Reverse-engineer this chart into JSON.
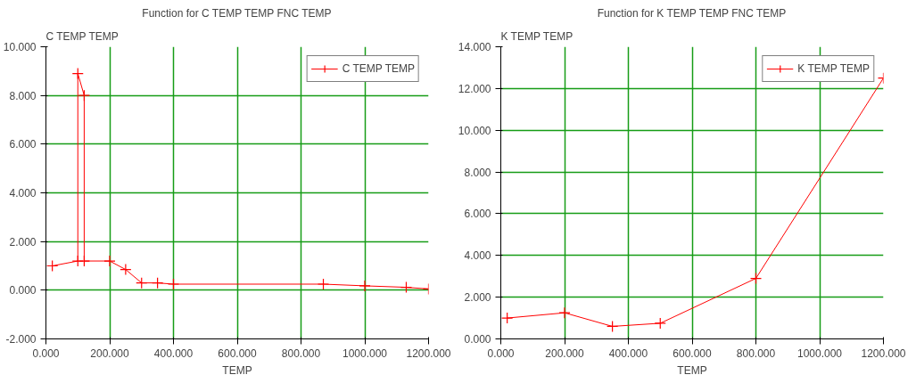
{
  "chart_data": [
    {
      "type": "line",
      "title": "Function for C TEMP TEMP FNC TEMP",
      "xlabel": "TEMP",
      "ylabel": "C TEMP TEMP",
      "x": [
        20,
        100,
        100,
        120,
        120,
        200,
        250,
        300,
        350,
        400,
        870,
        1000,
        1130,
        1200
      ],
      "series": [
        {
          "name": "C TEMP TEMP",
          "color": "#ff0000",
          "values": [
            1.0,
            1.2,
            8.9,
            8.0,
            1.2,
            1.2,
            0.85,
            0.3,
            0.3,
            0.25,
            0.25,
            0.18,
            0.12,
            0.05
          ]
        }
      ],
      "xlim": [
        0,
        1200
      ],
      "ylim": [
        -2,
        10
      ],
      "xticks": [
        {
          "value": 0,
          "label": "0.000"
        },
        {
          "value": 200,
          "label": "200.000"
        },
        {
          "value": 400,
          "label": "400.000"
        },
        {
          "value": 600,
          "label": "600.000"
        },
        {
          "value": 800,
          "label": "800.000"
        },
        {
          "value": 1000,
          "label": "1000.000"
        },
        {
          "value": 1200,
          "label": "1200.000"
        }
      ],
      "yticks": [
        {
          "value": -2,
          "label": "-2.000"
        },
        {
          "value": 0,
          "label": "0.000"
        },
        {
          "value": 2,
          "label": "2.000"
        },
        {
          "value": 4,
          "label": "4.000"
        },
        {
          "value": 6,
          "label": "6.000"
        },
        {
          "value": 8,
          "label": "8.000"
        },
        {
          "value": 10,
          "label": "10.000"
        }
      ],
      "grid": true,
      "legend": "top right",
      "marker": "cross",
      "line_style": "solid"
    },
    {
      "type": "line",
      "title": "Function for K TEMP TEMP FNC TEMP",
      "xlabel": "TEMP",
      "ylabel": "K TEMP TEMP",
      "x": [
        20,
        200,
        350,
        500,
        800,
        1200
      ],
      "series": [
        {
          "name": "K TEMP TEMP",
          "color": "#ff0000",
          "values": [
            1.0,
            1.25,
            0.6,
            0.75,
            2.9,
            12.5
          ]
        }
      ],
      "xlim": [
        0,
        1200
      ],
      "ylim": [
        0,
        14
      ],
      "xticks": [
        {
          "value": 0,
          "label": "0.000"
        },
        {
          "value": 200,
          "label": "200.000"
        },
        {
          "value": 400,
          "label": "400.000"
        },
        {
          "value": 600,
          "label": "600.000"
        },
        {
          "value": 800,
          "label": "800.000"
        },
        {
          "value": 1000,
          "label": "1000.000"
        },
        {
          "value": 1200,
          "label": "1200.000"
        }
      ],
      "yticks": [
        {
          "value": 0,
          "label": "0.000"
        },
        {
          "value": 2,
          "label": "2.000"
        },
        {
          "value": 4,
          "label": "4.000"
        },
        {
          "value": 6,
          "label": "6.000"
        },
        {
          "value": 8,
          "label": "8.000"
        },
        {
          "value": 10,
          "label": "10.000"
        },
        {
          "value": 12,
          "label": "12.000"
        },
        {
          "value": 14,
          "label": "14.000"
        }
      ],
      "grid": true,
      "legend": "top right",
      "marker": "cross",
      "line_style": "solid"
    }
  ]
}
